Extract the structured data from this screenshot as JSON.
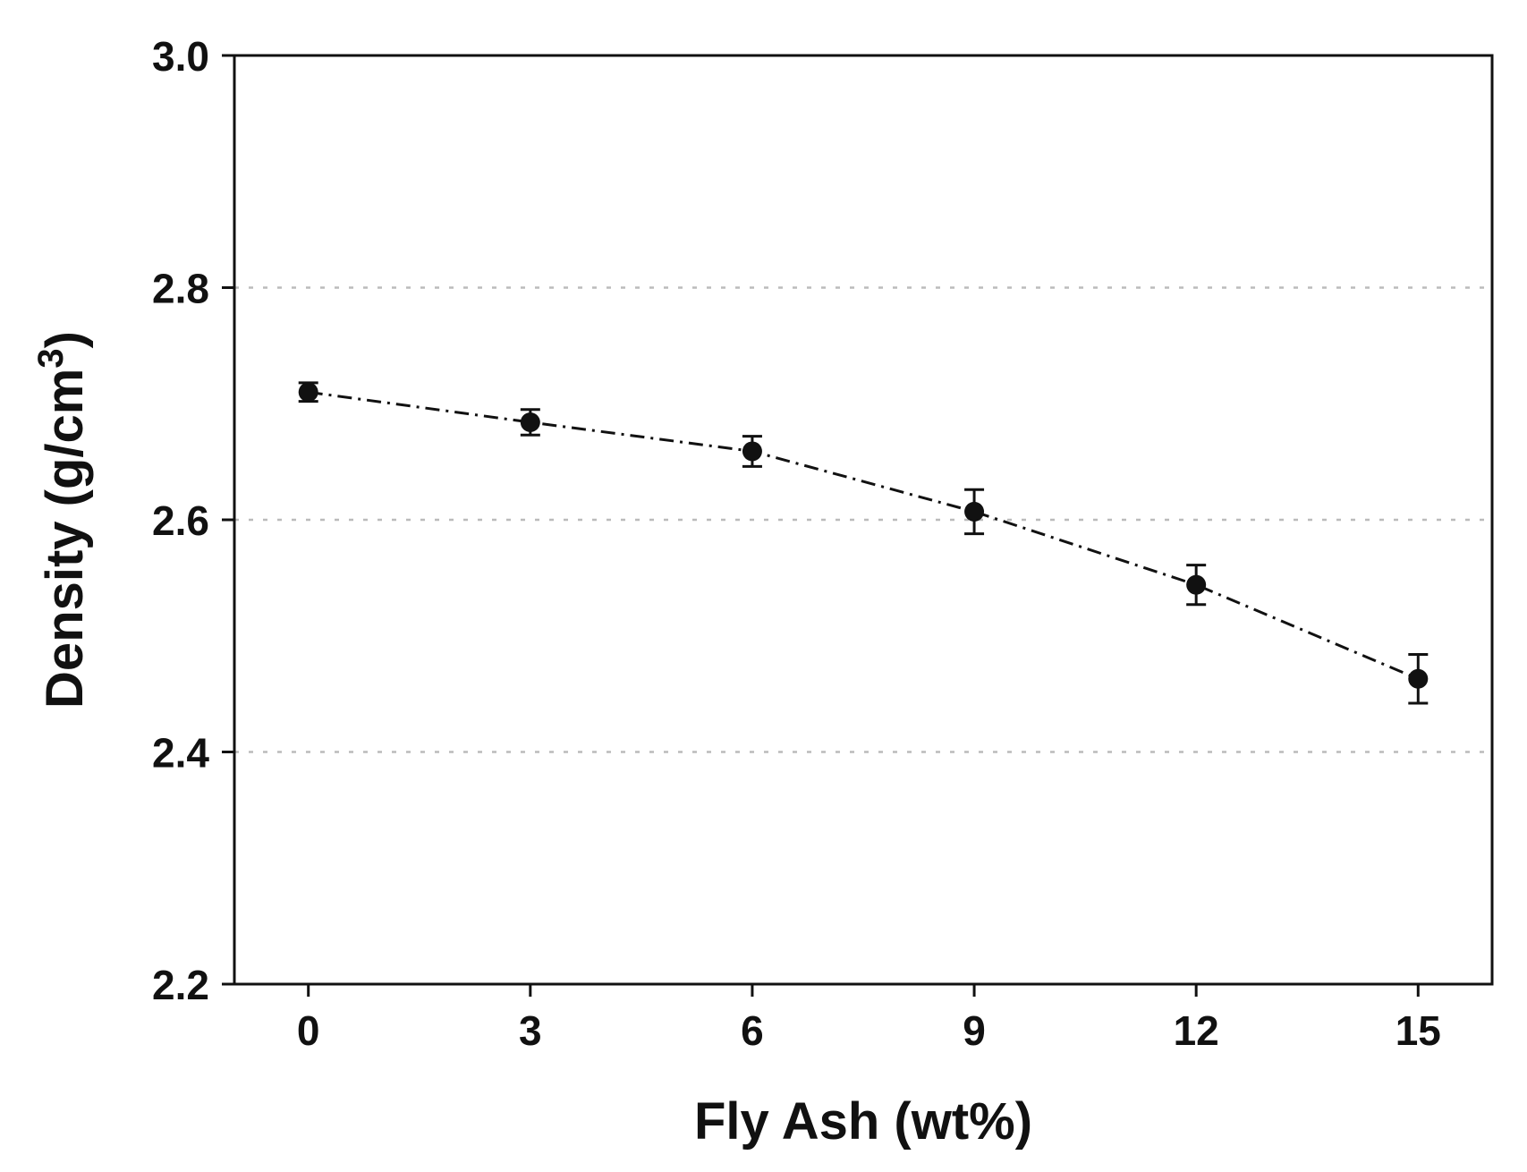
{
  "chart_data": {
    "type": "line",
    "xlabel": "Fly Ash (wt%)",
    "ylabel": {
      "text": "Density (g/cm",
      "superscript": "3",
      "suffix": ")"
    },
    "xlim": [
      -1,
      16
    ],
    "ylim": [
      2.2,
      3.0
    ],
    "x_ticks": [
      0,
      3,
      6,
      9,
      12,
      15
    ],
    "x_tick_labels": [
      "0",
      "3",
      "6",
      "9",
      "12",
      "15"
    ],
    "y_ticks": [
      2.2,
      2.4,
      2.6,
      2.8,
      3.0
    ],
    "y_tick_labels": [
      "2.2",
      "2.4",
      "2.6",
      "2.8",
      "3.0"
    ],
    "grid": {
      "axis": "y",
      "values": [
        2.4,
        2.6,
        2.8
      ],
      "style": "dotted",
      "color": "#bbbbbb"
    },
    "series": [
      {
        "x": [
          0,
          3,
          6,
          9,
          12,
          15
        ],
        "y": [
          2.71,
          2.684,
          2.659,
          2.607,
          2.544,
          2.463
        ],
        "error": [
          0.008,
          0.011,
          0.013,
          0.019,
          0.017,
          0.021
        ],
        "marker": "circle",
        "line_style": "dash-dot",
        "color": "#111111"
      }
    ]
  }
}
